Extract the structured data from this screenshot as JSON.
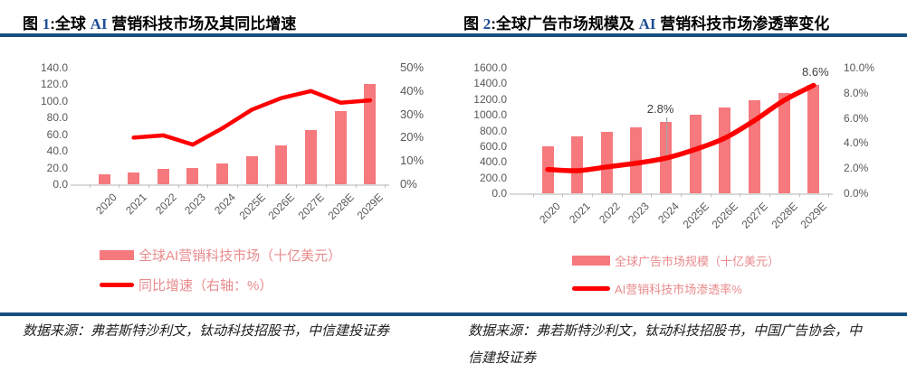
{
  "colors": {
    "bar": "#F5797D",
    "line": "#FE0000",
    "accent_blue": "#1F4E96",
    "rule_navy": "#164F7D",
    "axis_text": "#595959",
    "legend_text": "#E98B8D",
    "annotation_text": "#3F3F3F",
    "source_text": "#1F1F1F",
    "baseline_gray": "#D9D9D9"
  },
  "titles": [
    {
      "fig": "图 ",
      "num": "1",
      "mid": ":全球 ",
      "accent": "AI",
      "tail": " 营销科技市场及其同比增速"
    },
    {
      "fig": "图 ",
      "num": "2",
      "mid": ":全球广告市场规模及 ",
      "accent": "AI",
      "tail": " 营销科技市场渗透率变化"
    }
  ],
  "sources": {
    "left": "数据来源：弗若斯特沙利文，钛动科技招股书，中信建投证券",
    "right_line1": "数据来源：弗若斯特沙利文，钛动科技招股书，中国广告协会，中",
    "right_line2": "信建投证券"
  },
  "chart_data": [
    {
      "type": "bar+line",
      "title": "全球AI营销科技市场及其同比增速",
      "categories": [
        "2020",
        "2021",
        "2022",
        "2023",
        "2024",
        "2025E",
        "2026E",
        "2027E",
        "2028E",
        "2029E"
      ],
      "series": [
        {
          "name": "全球AI营销科技市场（十亿美元）",
          "type": "bar",
          "axis": "left",
          "values": [
            12,
            14,
            18,
            20,
            25,
            34,
            47,
            65,
            88,
            120
          ]
        },
        {
          "name": "同比增速（右轴：%）",
          "type": "line",
          "axis": "right",
          "values": [
            null,
            20,
            21,
            17,
            24,
            32,
            37,
            40,
            35,
            36
          ]
        }
      ],
      "left_axis": {
        "min": 0,
        "max": 140,
        "ticks": [
          "140.0",
          "120.0",
          "100.0",
          "80.0",
          "60.0",
          "40.0",
          "20.0",
          "0.0"
        ]
      },
      "right_axis": {
        "min": 0,
        "max": 50,
        "ticks": [
          "50%",
          "40%",
          "30%",
          "20%",
          "10%",
          "0%"
        ]
      },
      "annotations": [],
      "legend_position": "bottom",
      "gridlines": false
    },
    {
      "type": "bar+line",
      "title": "全球广告市场规模及AI营销科技市场渗透率变化",
      "categories": [
        "2020",
        "2021",
        "2022",
        "2023",
        "2024",
        "2025E",
        "2026E",
        "2027E",
        "2028E",
        "2029E"
      ],
      "series": [
        {
          "name": "全球广告市场规模（十亿美元）",
          "type": "bar",
          "axis": "left",
          "values": [
            600,
            730,
            780,
            840,
            910,
            1000,
            1090,
            1190,
            1280,
            1380
          ]
        },
        {
          "name": "AI营销科技市场渗透率%",
          "type": "line",
          "axis": "right",
          "values": [
            1.9,
            1.8,
            2.1,
            2.4,
            2.8,
            3.5,
            4.4,
            5.8,
            7.4,
            8.6
          ]
        }
      ],
      "left_axis": {
        "min": 0,
        "max": 1600,
        "ticks": [
          "1600.0",
          "1400.0",
          "1200.0",
          "1000.0",
          "800.0",
          "600.0",
          "400.0",
          "200.0",
          "0.0"
        ]
      },
      "right_axis": {
        "min": 0,
        "max": 10,
        "ticks": [
          "10.0%",
          "8.0%",
          "6.0%",
          "4.0%",
          "2.0%",
          "0.0%"
        ]
      },
      "annotations": [
        {
          "category": "2024",
          "text": "2.8%"
        },
        {
          "category": "2029E",
          "text": "8.6%"
        }
      ],
      "legend_position": "bottom",
      "gridlines": false
    }
  ]
}
